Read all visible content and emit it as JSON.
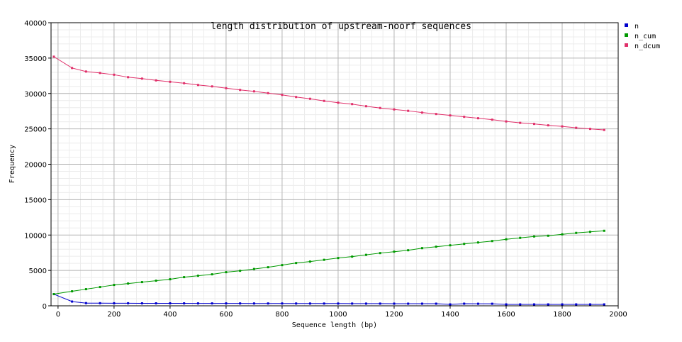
{
  "chart_data": {
    "type": "line",
    "title": "length distribution of upstream-noorf sequences",
    "xlabel": "Sequence length (bp)",
    "ylabel": "Frequency",
    "xlim": [
      -25,
      2000
    ],
    "ylim": [
      0,
      40000
    ],
    "x_ticks": [
      0,
      200,
      400,
      600,
      800,
      1000,
      1200,
      1400,
      1600,
      1800,
      2000
    ],
    "y_ticks": [
      0,
      5000,
      10000,
      15000,
      20000,
      25000,
      30000,
      35000,
      40000
    ],
    "grid": true,
    "legend_position": "right",
    "x": [
      -15,
      50,
      100,
      150,
      200,
      250,
      300,
      350,
      400,
      450,
      500,
      550,
      600,
      650,
      700,
      750,
      800,
      850,
      900,
      950,
      1000,
      1050,
      1100,
      1150,
      1200,
      1250,
      1300,
      1350,
      1400,
      1450,
      1500,
      1550,
      1600,
      1650,
      1700,
      1750,
      1800,
      1850,
      1900,
      1950
    ],
    "series": [
      {
        "name": "n",
        "color": "#0000cc",
        "values": [
          1650,
          600,
          380,
          370,
          360,
          360,
          350,
          350,
          350,
          345,
          340,
          340,
          340,
          335,
          330,
          330,
          330,
          325,
          320,
          320,
          320,
          315,
          310,
          310,
          305,
          300,
          300,
          300,
          200,
          300,
          290,
          290,
          200,
          200,
          200,
          200,
          200,
          200,
          200,
          200
        ]
      },
      {
        "name": "n_cum",
        "color": "#009900",
        "values": [
          1650,
          2050,
          2350,
          2650,
          2950,
          3150,
          3350,
          3550,
          3750,
          4050,
          4250,
          4450,
          4750,
          4950,
          5200,
          5450,
          5750,
          6050,
          6250,
          6500,
          6750,
          6950,
          7200,
          7450,
          7650,
          7850,
          8150,
          8350,
          8550,
          8750,
          8950,
          9150,
          9400,
          9600,
          9800,
          9900,
          10100,
          10300,
          10450,
          10600
        ]
      },
      {
        "name": "n_dcum",
        "color": "#e0306a",
        "values": [
          35200,
          33600,
          33100,
          32900,
          32650,
          32300,
          32100,
          31850,
          31650,
          31450,
          31200,
          31000,
          30750,
          30500,
          30300,
          30050,
          29800,
          29500,
          29250,
          28950,
          28700,
          28500,
          28200,
          27950,
          27750,
          27550,
          27300,
          27100,
          26900,
          26700,
          26500,
          26300,
          26050,
          25850,
          25700,
          25500,
          25350,
          25150,
          25000,
          24850
        ]
      }
    ]
  }
}
